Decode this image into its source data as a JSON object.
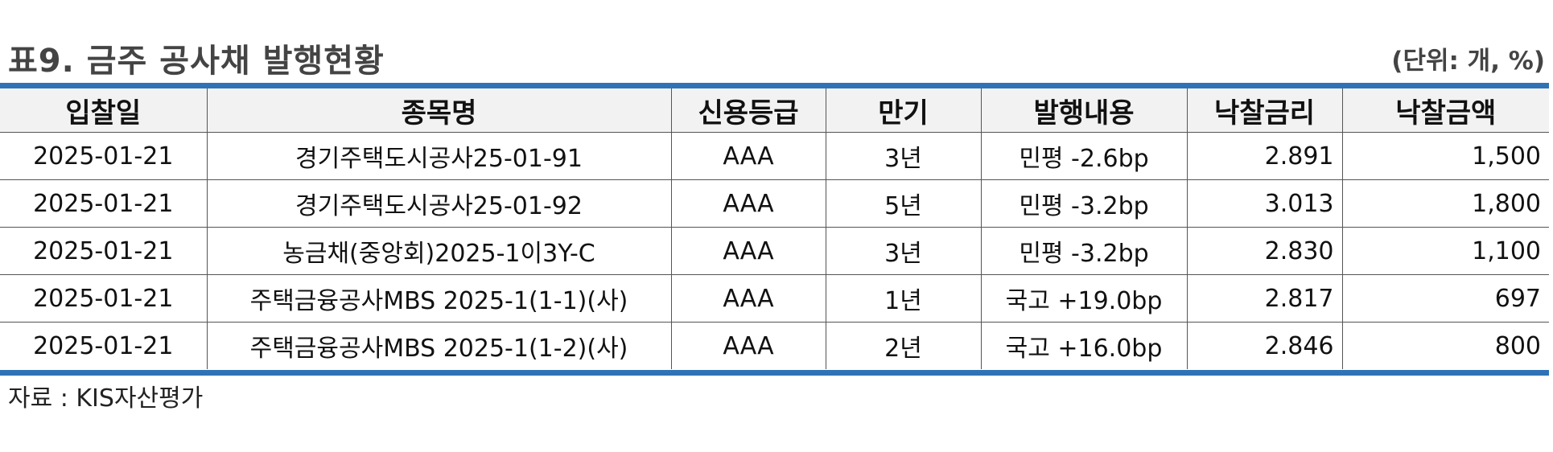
{
  "title": "표9. 금주 공사채 발행현황",
  "unit": "(단위: 개, %)",
  "table": {
    "headers": [
      "입찰일",
      "종목명",
      "신용등급",
      "만기",
      "발행내용",
      "낙찰금리",
      "낙찰금액"
    ],
    "rows": [
      [
        "2025-01-21",
        "경기주택도시공사25-01-91",
        "AAA",
        "3년",
        "민평 -2.6bp",
        "2.891",
        "1,500"
      ],
      [
        "2025-01-21",
        "경기주택도시공사25-01-92",
        "AAA",
        "5년",
        "민평 -3.2bp",
        "3.013",
        "1,800"
      ],
      [
        "2025-01-21",
        "농금채(중앙회)2025-1이3Y-C",
        "AAA",
        "3년",
        "민평 -3.2bp",
        "2.830",
        "1,100"
      ],
      [
        "2025-01-21",
        "주택금융공사MBS 2025-1(1-1)(사)",
        "AAA",
        "1년",
        "국고 +19.0bp",
        "2.817",
        "697"
      ],
      [
        "2025-01-21",
        "주택금융공사MBS 2025-1(1-2)(사)",
        "AAA",
        "2년",
        "국고 +16.0bp",
        "2.846",
        "800"
      ]
    ]
  },
  "source": "자료 : KIS자산평가",
  "colors": {
    "accent_rule": "#2f73b6",
    "header_bg": "#f2f2f2",
    "title_text": "#444444"
  }
}
